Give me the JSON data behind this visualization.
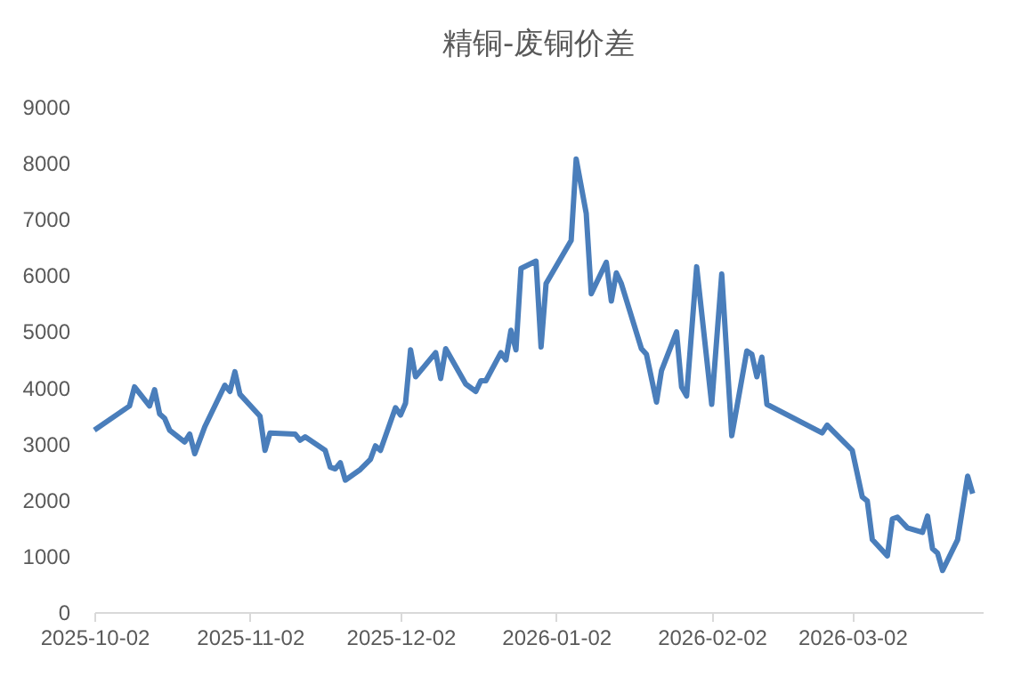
{
  "chart_data": {
    "type": "line",
    "title": "精铜-废铜价差",
    "x": [
      "2025-10-02",
      "2025-10-09",
      "2025-10-10",
      "2025-10-13",
      "2025-10-14",
      "2025-10-15",
      "2025-10-16",
      "2025-10-17",
      "2025-10-20",
      "2025-10-21",
      "2025-10-22",
      "2025-10-24",
      "2025-10-28",
      "2025-10-29",
      "2025-10-30",
      "2025-10-31",
      "2025-11-04",
      "2025-11-05",
      "2025-11-06",
      "2025-11-11",
      "2025-11-12",
      "2025-11-13",
      "2025-11-17",
      "2025-11-18",
      "2025-11-19",
      "2025-11-20",
      "2025-11-21",
      "2025-11-24",
      "2025-11-26",
      "2025-11-27",
      "2025-11-28",
      "2025-12-01",
      "2025-12-02",
      "2025-12-03",
      "2025-12-04",
      "2025-12-05",
      "2025-12-09",
      "2025-12-10",
      "2025-12-11",
      "2025-12-15",
      "2025-12-17",
      "2025-12-18",
      "2025-12-19",
      "2025-12-22",
      "2025-12-23",
      "2025-12-24",
      "2025-12-25",
      "2025-12-26",
      "2025-12-29",
      "2025-12-30",
      "2025-12-31",
      "2026-01-05",
      "2026-01-06",
      "2026-01-08",
      "2026-01-09",
      "2026-01-12",
      "2026-01-13",
      "2026-01-14",
      "2026-01-15",
      "2026-01-19",
      "2026-01-20",
      "2026-01-22",
      "2026-01-23",
      "2026-01-26",
      "2026-01-27",
      "2026-01-28",
      "2026-01-30",
      "2026-02-02",
      "2026-02-04",
      "2026-02-06",
      "2026-02-09",
      "2026-02-10",
      "2026-02-11",
      "2026-02-12",
      "2026-02-13",
      "2026-02-24",
      "2026-02-25",
      "2026-02-26",
      "2026-03-02",
      "2026-03-04",
      "2026-03-05",
      "2026-03-06",
      "2026-03-09",
      "2026-03-10",
      "2026-03-11",
      "2026-03-13",
      "2026-03-16",
      "2026-03-17",
      "2026-03-18",
      "2026-03-19",
      "2026-03-20",
      "2026-03-23",
      "2026-03-25",
      "2026-03-26"
    ],
    "series": [
      {
        "color": "#4a7ebb",
        "values": [
          3240,
          3670,
          4010,
          3670,
          3960,
          3530,
          3450,
          3240,
          3030,
          3170,
          2820,
          3300,
          4040,
          3930,
          4280,
          3880,
          3490,
          2880,
          3190,
          3170,
          3060,
          3120,
          2880,
          2580,
          2550,
          2660,
          2350,
          2540,
          2720,
          2960,
          2880,
          3640,
          3510,
          3720,
          4670,
          4190,
          4620,
          4160,
          4690,
          4060,
          3930,
          4120,
          4120,
          4620,
          4490,
          5020,
          4670,
          6120,
          6250,
          4720,
          5850,
          6620,
          8070,
          7100,
          5670,
          6230,
          5540,
          6040,
          5850,
          4690,
          4590,
          3740,
          4300,
          4990,
          4010,
          3850,
          6150,
          3700,
          6020,
          3140,
          4650,
          4590,
          4190,
          4540,
          3700,
          3190,
          3330,
          3240,
          2880,
          2050,
          1980,
          1290,
          1000,
          1660,
          1690,
          1500,
          1420,
          1710,
          1130,
          1050,
          740,
          1290,
          2420,
          2110
        ]
      }
    ],
    "xlim": [
      "2025-10-02",
      "2026-03-28"
    ],
    "xticks": [
      "2025-10-02",
      "2025-11-02",
      "2025-12-02",
      "2026-01-02",
      "2026-02-02",
      "2026-03-02"
    ],
    "ylim": [
      0,
      9000
    ],
    "yticks": [
      0,
      1000,
      2000,
      3000,
      4000,
      5000,
      6000,
      7000,
      8000,
      9000
    ],
    "grid": false,
    "legend": false,
    "line_style": "solid",
    "marker": "none"
  }
}
